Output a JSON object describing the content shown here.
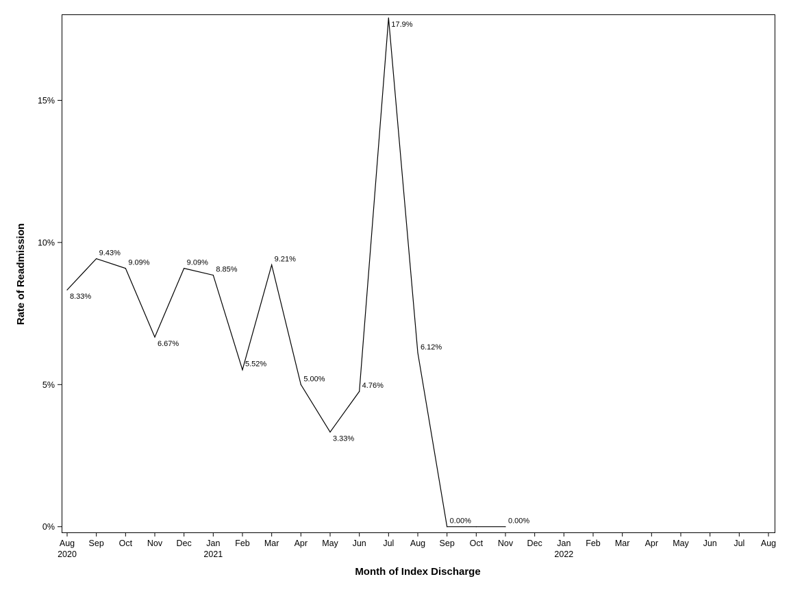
{
  "chart_data": {
    "type": "line",
    "title": "",
    "xlabel": "Month of Index Discharge",
    "ylabel": "Rate of Readmission",
    "x_ticks": [
      {
        "month": "Aug",
        "year": "2020"
      },
      {
        "month": "Sep",
        "year": ""
      },
      {
        "month": "Oct",
        "year": ""
      },
      {
        "month": "Nov",
        "year": ""
      },
      {
        "month": "Dec",
        "year": ""
      },
      {
        "month": "Jan",
        "year": "2021"
      },
      {
        "month": "Feb",
        "year": ""
      },
      {
        "month": "Mar",
        "year": ""
      },
      {
        "month": "Apr",
        "year": ""
      },
      {
        "month": "May",
        "year": ""
      },
      {
        "month": "Jun",
        "year": ""
      },
      {
        "month": "Jul",
        "year": ""
      },
      {
        "month": "Aug",
        "year": ""
      },
      {
        "month": "Sep",
        "year": ""
      },
      {
        "month": "Oct",
        "year": ""
      },
      {
        "month": "Nov",
        "year": ""
      },
      {
        "month": "Dec",
        "year": ""
      },
      {
        "month": "Jan",
        "year": "2022"
      },
      {
        "month": "Feb",
        "year": ""
      },
      {
        "month": "Mar",
        "year": ""
      },
      {
        "month": "Apr",
        "year": ""
      },
      {
        "month": "May",
        "year": ""
      },
      {
        "month": "Jun",
        "year": ""
      },
      {
        "month": "Jul",
        "year": ""
      },
      {
        "month": "Aug",
        "year": ""
      }
    ],
    "y_ticks": [
      {
        "value": 0,
        "label": "0%"
      },
      {
        "value": 5,
        "label": "5%"
      },
      {
        "value": 10,
        "label": "10%"
      },
      {
        "value": 15,
        "label": "15%"
      }
    ],
    "ylim": [
      -0.2,
      18.0
    ],
    "xlim": [
      "2020-08",
      "2022-08"
    ],
    "grid": false,
    "legend": "none",
    "series": [
      {
        "color": "#000000",
        "points": [
          {
            "x": "2020-08",
            "y": 8.33,
            "label": "8.33%",
            "label_pos": "below"
          },
          {
            "x": "2020-09",
            "y": 9.43,
            "label": "9.43%",
            "label_pos": "above"
          },
          {
            "x": "2020-10",
            "y": 9.09,
            "label": "9.09%",
            "label_pos": "above"
          },
          {
            "x": "2020-11",
            "y": 6.67,
            "label": "6.67%",
            "label_pos": "below"
          },
          {
            "x": "2020-12",
            "y": 9.09,
            "label": "9.09%",
            "label_pos": "above"
          },
          {
            "x": "2021-01",
            "y": 8.85,
            "label": "8.85%",
            "label_pos": "above"
          },
          {
            "x": "2021-02",
            "y": 5.52,
            "label": "5.52%",
            "label_pos": "above"
          },
          {
            "x": "2021-03",
            "y": 9.21,
            "label": "9.21%",
            "label_pos": "above"
          },
          {
            "x": "2021-04",
            "y": 5.0,
            "label": "5.00%",
            "label_pos": "above"
          },
          {
            "x": "2021-05",
            "y": 3.33,
            "label": "3.33%",
            "label_pos": "below"
          },
          {
            "x": "2021-06",
            "y": 4.76,
            "label": "4.76%",
            "label_pos": "above"
          },
          {
            "x": "2021-07",
            "y": 17.9,
            "label": "17.9%",
            "label_pos": "below"
          },
          {
            "x": "2021-08",
            "y": 6.12,
            "label": "6.12%",
            "label_pos": "above"
          },
          {
            "x": "2021-09",
            "y": 0.0,
            "label": "0.00%",
            "label_pos": "above"
          },
          {
            "x": "2021-10",
            "y": 0.0,
            "label": "",
            "label_pos": "none"
          },
          {
            "x": "2021-11",
            "y": 0.0,
            "label": "0.00%",
            "label_pos": "above"
          }
        ]
      }
    ]
  }
}
